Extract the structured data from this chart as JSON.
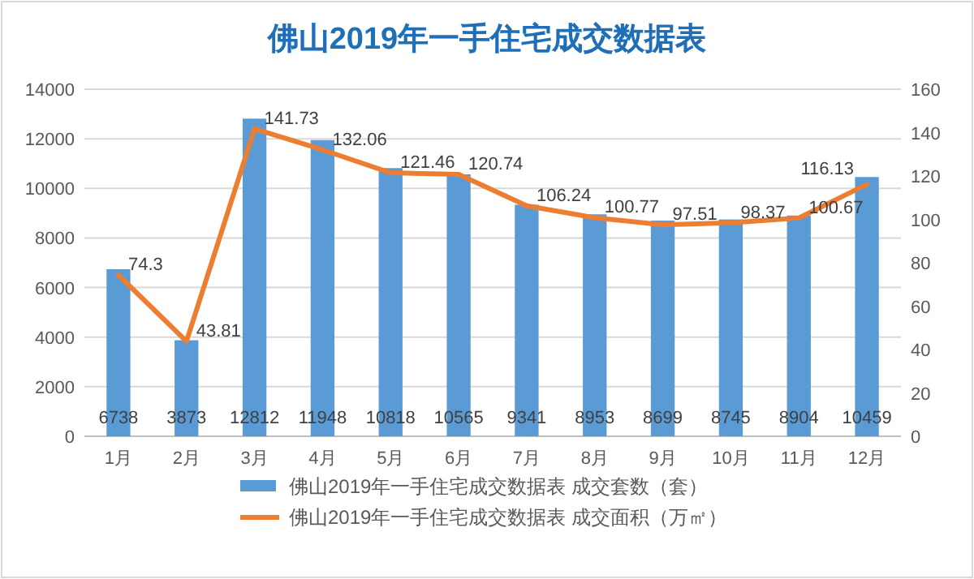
{
  "chart_data": {
    "type": "bar",
    "title": "佛山2019年一手住宅成交数据表",
    "categories": [
      "1月",
      "2月",
      "3月",
      "4月",
      "5月",
      "6月",
      "7月",
      "8月",
      "9月",
      "10月",
      "11月",
      "12月"
    ],
    "series": [
      {
        "name": "佛山2019年一手住宅成交数据表 成交套数（套）",
        "color": "#5b9bd5",
        "values": [
          6738,
          3873,
          12812,
          11948,
          10818,
          10565,
          9341,
          8953,
          8699,
          8745,
          8904,
          10459
        ]
      },
      {
        "name": "佛山2019年一手住宅成交数据表 成交面积（万㎡）",
        "type": "line",
        "axis": "y2",
        "color": "#ed7d31",
        "values": [
          74.3,
          43.81,
          141.73,
          132.06,
          121.46,
          120.74,
          106.24,
          100.77,
          97.51,
          98.37,
          100.67,
          116.13
        ]
      }
    ],
    "ylim": [
      0,
      14000
    ],
    "yticks": [
      0,
      2000,
      4000,
      6000,
      8000,
      10000,
      12000,
      14000
    ],
    "y2lim": [
      0,
      160
    ],
    "y2ticks": [
      0,
      20,
      40,
      60,
      80,
      100,
      120,
      140,
      160
    ],
    "grid": "y",
    "legend": "bottom",
    "data_labels": true,
    "marker": "none",
    "line_style": "solid"
  }
}
